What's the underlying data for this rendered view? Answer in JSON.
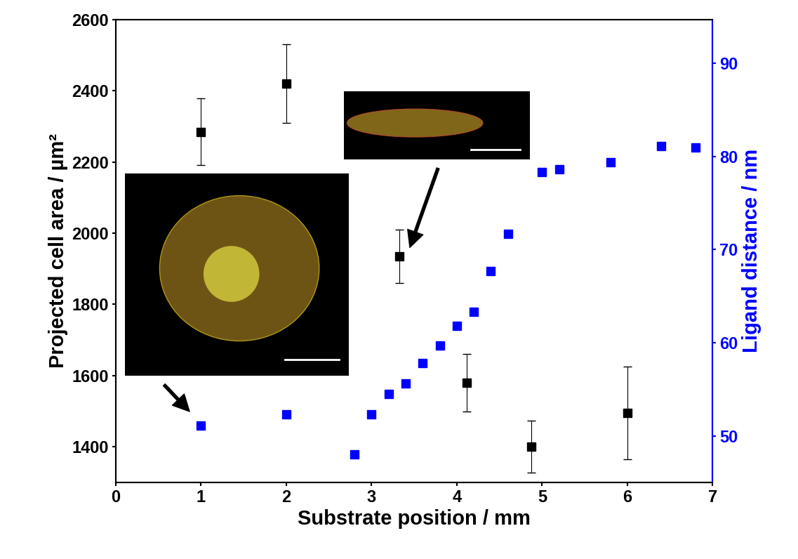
{
  "chart_data": {
    "type": "scatter",
    "x_label": "Substrate position / mm",
    "y_label": "Projected cell area / µm²",
    "y2_label": "Ligand distance / nm",
    "xlim": [
      0,
      7
    ],
    "xticks": [
      0,
      1,
      2,
      3,
      4,
      5,
      6,
      7
    ],
    "ylim": [
      1300,
      2600
    ],
    "yticks": [
      1400,
      1600,
      1800,
      2000,
      2200,
      2400,
      2600
    ],
    "y2lim": [
      45,
      94.7
    ],
    "y2ticks": [
      50,
      60,
      70,
      80,
      90
    ],
    "grid": false,
    "series": [
      {
        "color": "#000000",
        "marker": "square",
        "x": [
          1,
          2,
          3.33,
          4.12,
          4.87,
          6
        ],
        "values": [
          2285,
          2420,
          1935,
          1580,
          1400,
          1495
        ],
        "errors": [
          93,
          110,
          75,
          80,
          73,
          130
        ]
      },
      {
        "color": "#0000ff",
        "marker": "square",
        "axis": "y2",
        "x": [
          1,
          2,
          2.8,
          3,
          3.2,
          3.4,
          3.6,
          3.8,
          4,
          4.2,
          4.4,
          4.6,
          5,
          5.2,
          5.8,
          6.4,
          6.8
        ],
        "values": [
          51.1,
          52.3,
          48.0,
          52.3,
          54.5,
          55.6,
          57.8,
          59.7,
          61.8,
          63.3,
          67.7,
          71.7,
          78.3,
          78.6,
          79.4,
          81.1,
          81.0
        ]
      }
    ]
  }
}
